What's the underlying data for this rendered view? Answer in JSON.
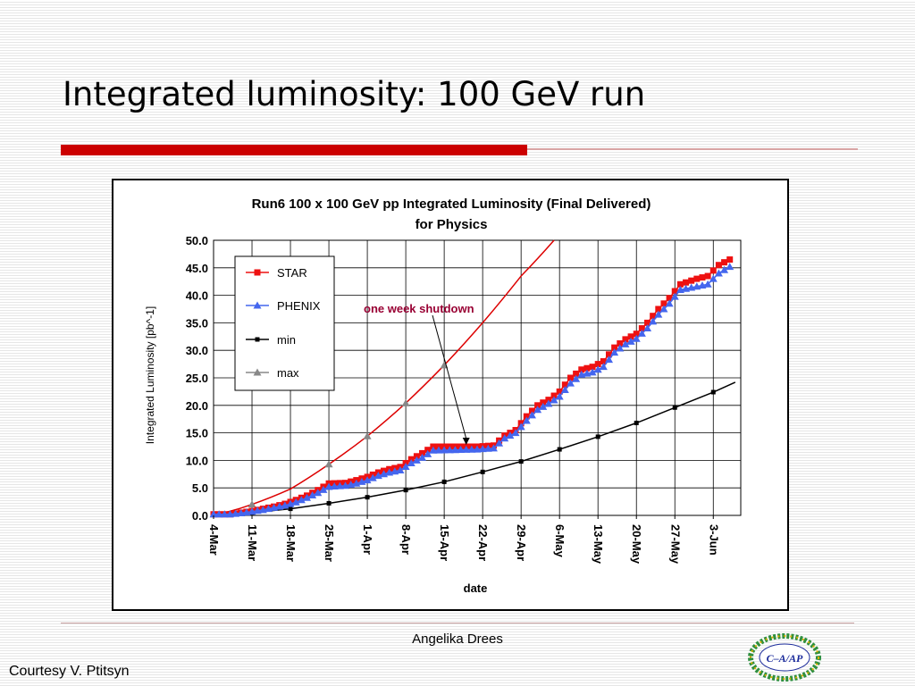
{
  "slide": {
    "title": "Integrated luminosity: 100 GeV run",
    "author": "Angelika Drees",
    "credit": "Courtesy V. Ptitsyn",
    "logo_text": "C–A/AP"
  },
  "colors": {
    "accent_bar": "#cc0000",
    "star": "#ee1111",
    "phenix": "#4466ee",
    "min": "#000000",
    "max": "#888888",
    "annotation": "#990033"
  },
  "chart_data": {
    "type": "line",
    "title": "Run6 100 x 100 GeV pp Integrated Luminosity (Final Delivered)",
    "subtitle": "for Physics",
    "xlabel": "date",
    "ylabel": "Integrated Luminosity [pb^-1]",
    "ylim": [
      0,
      50
    ],
    "xlim": [
      "2006-03-04",
      "2006-06-08"
    ],
    "yticks": [
      "0.0",
      "5.0",
      "10.0",
      "15.0",
      "20.0",
      "25.0",
      "30.0",
      "35.0",
      "40.0",
      "45.0",
      "50.0"
    ],
    "xticks": [
      "4-Mar",
      "11-Mar",
      "18-Mar",
      "25-Mar",
      "1-Apr",
      "8-Apr",
      "15-Apr",
      "22-Apr",
      "29-Apr",
      "6-May",
      "13-May",
      "20-May",
      "27-May",
      "3-Jun"
    ],
    "grid": true,
    "legend_position": "top-left",
    "annotation": {
      "text": "one week shutdown",
      "x": "2006-04-19",
      "y": 12.5
    },
    "series": [
      {
        "name": "STAR",
        "color": "#ee1111",
        "marker": "square",
        "points": [
          [
            "2006-03-04",
            0.2
          ],
          [
            "2006-03-07",
            0.2
          ],
          [
            "2006-03-09",
            0.5
          ],
          [
            "2006-03-11",
            0.8
          ],
          [
            "2006-03-13",
            1.2
          ],
          [
            "2006-03-15",
            1.6
          ],
          [
            "2006-03-17",
            2.1
          ],
          [
            "2006-03-19",
            2.8
          ],
          [
            "2006-03-21",
            3.6
          ],
          [
            "2006-03-23",
            4.6
          ],
          [
            "2006-03-25",
            5.8
          ],
          [
            "2006-03-28",
            5.9
          ],
          [
            "2006-03-30",
            6.4
          ],
          [
            "2006-04-01",
            7.0
          ],
          [
            "2006-04-03",
            7.8
          ],
          [
            "2006-04-05",
            8.4
          ],
          [
            "2006-04-07",
            8.8
          ],
          [
            "2006-04-09",
            10.2
          ],
          [
            "2006-04-11",
            11.3
          ],
          [
            "2006-04-13",
            12.5
          ],
          [
            "2006-04-17",
            12.5
          ],
          [
            "2006-04-21",
            12.5
          ],
          [
            "2006-04-24",
            12.7
          ],
          [
            "2006-04-26",
            14.5
          ],
          [
            "2006-04-28",
            15.5
          ],
          [
            "2006-04-30",
            18.0
          ],
          [
            "2006-05-02",
            20.0
          ],
          [
            "2006-05-04",
            21.0
          ],
          [
            "2006-05-06",
            22.5
          ],
          [
            "2006-05-08",
            25.0
          ],
          [
            "2006-05-10",
            26.5
          ],
          [
            "2006-05-12",
            27.0
          ],
          [
            "2006-05-14",
            28.0
          ],
          [
            "2006-05-16",
            30.5
          ],
          [
            "2006-05-18",
            32.0
          ],
          [
            "2006-05-20",
            33.0
          ],
          [
            "2006-05-22",
            35.0
          ],
          [
            "2006-05-24",
            37.5
          ],
          [
            "2006-05-26",
            39.5
          ],
          [
            "2006-05-28",
            42.0
          ],
          [
            "2006-05-31",
            43.0
          ],
          [
            "2006-06-02",
            43.5
          ],
          [
            "2006-06-04",
            45.5
          ],
          [
            "2006-06-06",
            46.5
          ]
        ]
      },
      {
        "name": "PHENIX",
        "color": "#4466ee",
        "marker": "triangle",
        "points": [
          [
            "2006-03-04",
            0.2
          ],
          [
            "2006-03-07",
            0.2
          ],
          [
            "2006-03-09",
            0.4
          ],
          [
            "2006-03-11",
            0.7
          ],
          [
            "2006-03-13",
            1.0
          ],
          [
            "2006-03-15",
            1.4
          ],
          [
            "2006-03-17",
            1.8
          ],
          [
            "2006-03-19",
            2.4
          ],
          [
            "2006-03-21",
            3.2
          ],
          [
            "2006-03-23",
            4.1
          ],
          [
            "2006-03-25",
            5.2
          ],
          [
            "2006-03-28",
            5.4
          ],
          [
            "2006-03-30",
            5.8
          ],
          [
            "2006-04-01",
            6.4
          ],
          [
            "2006-04-03",
            7.2
          ],
          [
            "2006-04-05",
            7.8
          ],
          [
            "2006-04-07",
            8.2
          ],
          [
            "2006-04-09",
            9.5
          ],
          [
            "2006-04-11",
            10.5
          ],
          [
            "2006-04-13",
            11.8
          ],
          [
            "2006-04-17",
            11.9
          ],
          [
            "2006-04-21",
            12.0
          ],
          [
            "2006-04-24",
            12.2
          ],
          [
            "2006-04-26",
            14.0
          ],
          [
            "2006-04-28",
            15.0
          ],
          [
            "2006-04-30",
            17.2
          ],
          [
            "2006-05-02",
            19.2
          ],
          [
            "2006-05-04",
            20.3
          ],
          [
            "2006-05-06",
            21.6
          ],
          [
            "2006-05-08",
            24.0
          ],
          [
            "2006-05-10",
            25.6
          ],
          [
            "2006-05-12",
            26.0
          ],
          [
            "2006-05-14",
            27.0
          ],
          [
            "2006-05-16",
            29.6
          ],
          [
            "2006-05-18",
            31.1
          ],
          [
            "2006-05-20",
            32.1
          ],
          [
            "2006-05-22",
            34.0
          ],
          [
            "2006-05-24",
            36.5
          ],
          [
            "2006-05-26",
            38.5
          ],
          [
            "2006-05-28",
            41.0
          ],
          [
            "2006-05-31",
            41.6
          ],
          [
            "2006-06-02",
            42.0
          ],
          [
            "2006-06-04",
            44.0
          ],
          [
            "2006-06-06",
            45.2
          ]
        ]
      },
      {
        "name": "min",
        "color": "#000000",
        "marker": "square-small",
        "points": [
          [
            "2006-03-04",
            0.0
          ],
          [
            "2006-03-09",
            0.0
          ],
          [
            "2006-03-11",
            0.5
          ],
          [
            "2006-03-18",
            1.2
          ],
          [
            "2006-03-25",
            2.2
          ],
          [
            "2006-04-01",
            3.3
          ],
          [
            "2006-04-08",
            4.6
          ],
          [
            "2006-04-15",
            6.1
          ],
          [
            "2006-04-22",
            7.9
          ],
          [
            "2006-04-29",
            9.8
          ],
          [
            "2006-05-06",
            12.0
          ],
          [
            "2006-05-13",
            14.3
          ],
          [
            "2006-05-20",
            16.8
          ],
          [
            "2006-05-27",
            19.6
          ],
          [
            "2006-06-03",
            22.4
          ],
          [
            "2006-06-07",
            24.2
          ]
        ]
      },
      {
        "name": "max",
        "color": "#888888",
        "line_color": "#dd0000",
        "marker": "triangle",
        "points": [
          [
            "2006-03-04",
            0.0
          ],
          [
            "2006-03-06",
            0.5
          ],
          [
            "2006-03-11",
            2.0
          ],
          [
            "2006-03-18",
            4.8
          ],
          [
            "2006-03-25",
            9.3
          ],
          [
            "2006-04-01",
            14.4
          ],
          [
            "2006-04-08",
            20.4
          ],
          [
            "2006-04-15",
            27.3
          ],
          [
            "2006-04-22",
            35.0
          ],
          [
            "2006-04-29",
            43.5
          ],
          [
            "2006-05-05",
            50.0
          ]
        ],
        "marker_dates": [
          "2006-03-11",
          "2006-03-25",
          "2006-04-01",
          "2006-04-08",
          "2006-04-15"
        ]
      }
    ]
  }
}
